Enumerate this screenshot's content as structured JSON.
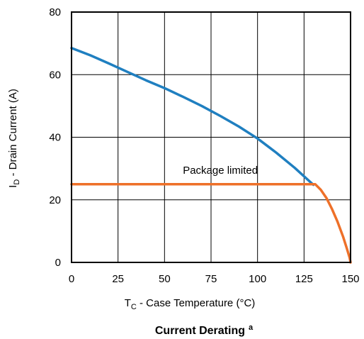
{
  "chart_data": {
    "type": "line",
    "title": "Current Derating",
    "title_superscript": "a",
    "xlabel": {
      "main": "T",
      "sub": "C",
      "rest": " - Case Temperature (°C)"
    },
    "ylabel": {
      "main": "I",
      "sub": "D",
      "rest": " - Drain Current (A)"
    },
    "xlim": [
      0,
      150
    ],
    "ylim": [
      0,
      80
    ],
    "xticks": [
      0,
      25,
      50,
      75,
      100,
      125,
      150
    ],
    "yticks": [
      0,
      20,
      40,
      60,
      80
    ],
    "grid": true,
    "annotation": {
      "text": "Package limited",
      "x": 80,
      "y": 29.5
    },
    "series": [
      {
        "color": "#1f7fc0",
        "x": [
          0,
          10,
          20,
          30,
          40,
          50,
          60,
          70,
          80,
          90,
          100,
          110,
          120,
          130
        ],
        "y": [
          68.5,
          66.2,
          63.6,
          60.9,
          58.2,
          55.7,
          52.9,
          50,
          46.8,
          43.4,
          39.6,
          35.1,
          30.2,
          24.8
        ]
      },
      {
        "color": "#ee7029",
        "x": [
          0,
          131,
          134,
          137,
          140,
          143,
          146,
          148,
          149.5,
          150
        ],
        "y": [
          25,
          25,
          23.2,
          20.6,
          17.1,
          13,
          8.2,
          4.5,
          1.5,
          0
        ]
      }
    ]
  }
}
